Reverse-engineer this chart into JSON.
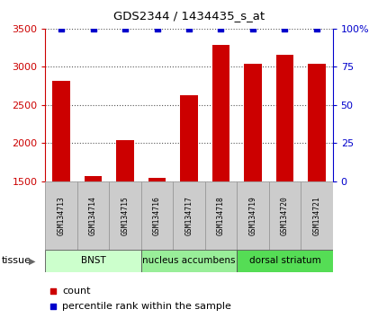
{
  "title": "GDS2344 / 1434435_s_at",
  "samples": [
    "GSM134713",
    "GSM134714",
    "GSM134715",
    "GSM134716",
    "GSM134717",
    "GSM134718",
    "GSM134719",
    "GSM134720",
    "GSM134721"
  ],
  "counts": [
    2820,
    1570,
    2040,
    1540,
    2630,
    3290,
    3040,
    3160,
    3040
  ],
  "percentile_ranks": [
    100,
    100,
    100,
    100,
    100,
    100,
    100,
    100,
    100
  ],
  "ylim_left": [
    1500,
    3500
  ],
  "ylim_right": [
    0,
    100
  ],
  "yticks_left": [
    1500,
    2000,
    2500,
    3000,
    3500
  ],
  "yticks_right": [
    0,
    25,
    50,
    75,
    100
  ],
  "bar_color": "#cc0000",
  "dot_color": "#0000cc",
  "tissue_groups": [
    {
      "label": "BNST",
      "start": 0,
      "end": 3,
      "color": "#ccffcc"
    },
    {
      "label": "nucleus accumbens",
      "start": 3,
      "end": 6,
      "color": "#99ee99"
    },
    {
      "label": "dorsal striatum",
      "start": 6,
      "end": 9,
      "color": "#55dd55"
    }
  ],
  "xlabel_tissue": "tissue",
  "legend_count": "count",
  "legend_percentile": "percentile rank within the sample",
  "background_color": "#ffffff",
  "grid_color": "#555555",
  "bar_bottom": 1500,
  "sample_box_color": "#cccccc",
  "sample_box_edge": "#999999"
}
